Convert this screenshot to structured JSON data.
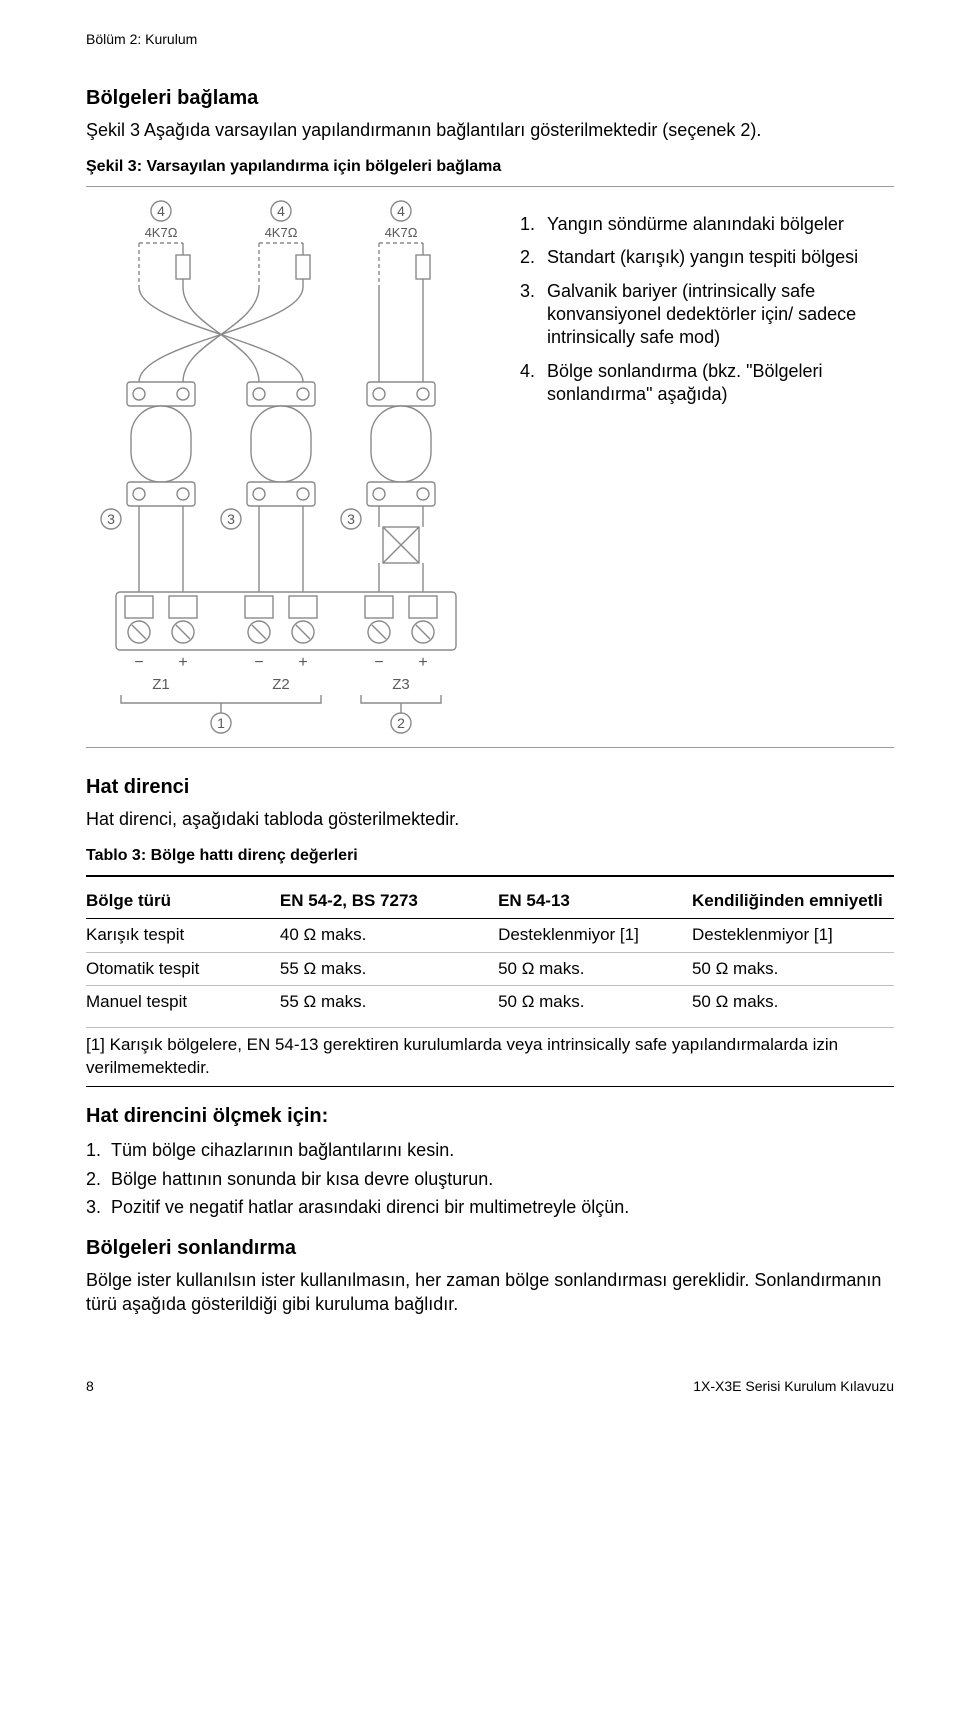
{
  "chapter": "Bölüm 2: Kurulum",
  "heading1": "Bölgeleri bağlama",
  "intro": "Şekil 3 Aşağıda varsayılan yapılandırmanın bağlantıları gösterilmektedir (seçenek 2).",
  "figCaption": "Şekil 3: Varsayılan yapılandırma için bölgeleri bağlama",
  "legend": [
    {
      "n": "1.",
      "t": "Yangın söndürme alanındaki bölgeler"
    },
    {
      "n": "2.",
      "t": "Standart (karışık) yangın tespiti bölgesi"
    },
    {
      "n": "3.",
      "t": "Galvanik bariyer (intrinsically safe konvansiyonel dedektörler için/ sadece intrinsically safe mod)"
    },
    {
      "n": "4.",
      "t": "Bölge sonlandırma (bkz. \"Bölgeleri sonlandırma\" aşağıda)"
    }
  ],
  "diagram": {
    "topLabels": [
      "4",
      "4",
      "4"
    ],
    "resistorLabels": [
      "4K7Ω",
      "4K7Ω",
      "4K7Ω"
    ],
    "midLabels": [
      "3",
      "3",
      "3"
    ],
    "zoneLabels": [
      "Z1",
      "Z2",
      "Z3"
    ],
    "bottomCircles": [
      "1",
      "2"
    ],
    "polarity": [
      "−",
      "+",
      "−",
      "+",
      "−",
      "+"
    ],
    "stroke": "#8a8a8a",
    "text": "#5a5a5a",
    "wire": "#8a8a8a",
    "dash": "4,3"
  },
  "h2a": "Hat direnci",
  "h2a_p": "Hat direnci, aşağıdaki tabloda gösterilmektedir.",
  "tableCaption": "Tablo 3: Bölge hattı direnç değerleri",
  "table": {
    "cols": [
      "Bölge türü",
      "EN 54-2, BS 7273",
      "EN 54-13",
      "Kendiliğinden emniyetli"
    ],
    "rows": [
      [
        "Karışık tespit",
        "40 Ω maks.",
        "Desteklenmiyor [1]",
        "Desteklenmiyor [1]"
      ],
      [
        "Otomatik tespit",
        "55 Ω maks.",
        "50 Ω maks.",
        "50 Ω maks."
      ],
      [
        "Manuel tespit",
        "55 Ω maks.",
        "50 Ω maks.",
        "50 Ω maks."
      ]
    ],
    "colWidths": [
      "24%",
      "27%",
      "24%",
      "25%"
    ]
  },
  "footnote": "[1] Karışık bölgelere, EN 54-13 gerektiren kurulumlarda veya intrinsically safe yapılandırmalarda izin verilmemektedir.",
  "procHeading": "Hat direncini ölçmek için:",
  "steps": [
    {
      "n": "1.",
      "t": "Tüm bölge cihazlarının bağlantılarını kesin."
    },
    {
      "n": "2.",
      "t": "Bölge hattının sonunda bir kısa devre oluşturun."
    },
    {
      "n": "3.",
      "t": "Pozitif ve negatif hatlar arasındaki direnci bir multimetreyle ölçün."
    }
  ],
  "h2b": "Bölgeleri sonlandırma",
  "h2b_p": "Bölge ister kullanılsın ister kullanılmasın, her zaman bölge sonlandırması gereklidir. Sonlandırmanın türü aşağıda gösterildiği gibi kuruluma bağlıdır.",
  "footer": {
    "page": "8",
    "doc": "1X-X3E Serisi Kurulum Kılavuzu"
  }
}
